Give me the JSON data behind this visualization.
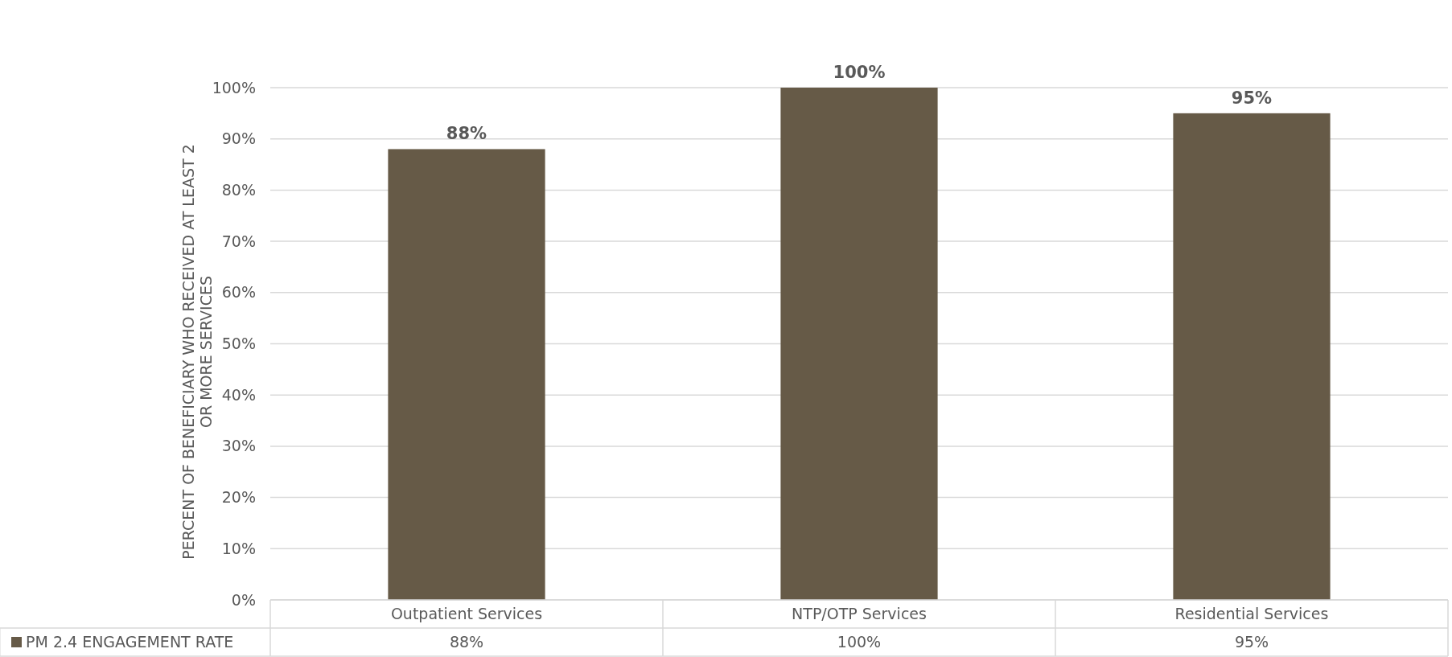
{
  "chart_data": {
    "type": "bar",
    "ylabel": "PERCENT OF BENEFICIARY WHO RECEIVED AT LEAST 2 OR MORE SERVICES",
    "categories": [
      "Outpatient Services",
      "NTP/OTP Services",
      "Residential Services"
    ],
    "series": [
      {
        "name": "PM 2.4 ENGAGEMENT RATE",
        "color": "#665a47",
        "values": [
          88,
          100,
          95
        ],
        "value_labels": [
          "88%",
          "100%",
          "95%"
        ]
      }
    ],
    "ylim": [
      0,
      100
    ],
    "yticks": [
      {
        "value": 0,
        "label": "0%"
      },
      {
        "value": 10,
        "label": "10%"
      },
      {
        "value": 20,
        "label": "20%"
      },
      {
        "value": 30,
        "label": "30%"
      },
      {
        "value": 40,
        "label": "40%"
      },
      {
        "value": 50,
        "label": "50%"
      },
      {
        "value": 60,
        "label": "60%"
      },
      {
        "value": 70,
        "label": "70%"
      },
      {
        "value": 80,
        "label": "80%"
      },
      {
        "value": 90,
        "label": "90%"
      },
      {
        "value": 100,
        "label": "100%"
      }
    ],
    "grid": "y",
    "legend": "bottom"
  }
}
